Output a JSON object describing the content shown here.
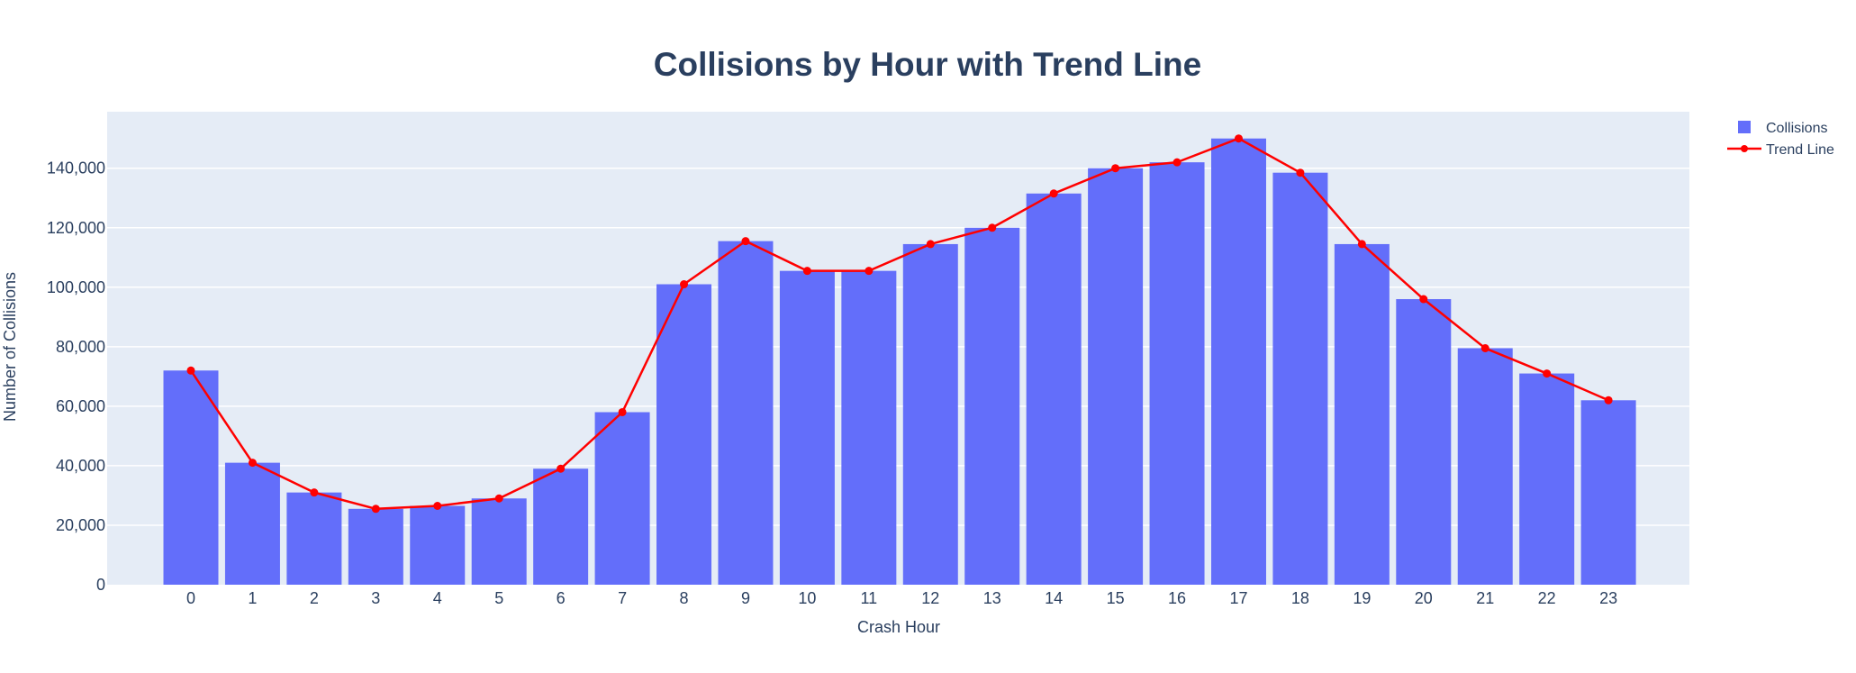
{
  "chart_data": {
    "type": "bar",
    "title": "Collisions by Hour with Trend Line",
    "xlabel": "Crash Hour",
    "ylabel": "Number of Collisions",
    "categories": [
      "0",
      "1",
      "2",
      "3",
      "4",
      "5",
      "6",
      "7",
      "8",
      "9",
      "10",
      "11",
      "12",
      "13",
      "14",
      "15",
      "16",
      "17",
      "18",
      "19",
      "20",
      "21",
      "22",
      "23"
    ],
    "series": [
      {
        "name": "Collisions",
        "type": "bar",
        "color": "#636efa",
        "values": [
          72000,
          41000,
          31000,
          25500,
          26500,
          29000,
          39000,
          58000,
          101000,
          115500,
          105500,
          105500,
          114500,
          120000,
          131500,
          140000,
          142000,
          150000,
          138500,
          114500,
          96000,
          79500,
          71000,
          62000
        ]
      },
      {
        "name": "Trend Line",
        "type": "line+markers",
        "color": "#ff0000",
        "values": [
          72000,
          41000,
          31000,
          25500,
          26500,
          29000,
          39000,
          58000,
          101000,
          115500,
          105500,
          105500,
          114500,
          120000,
          131500,
          140000,
          142000,
          150000,
          138500,
          114500,
          96000,
          79500,
          71000,
          62000
        ]
      }
    ],
    "yticks": [
      0,
      20000,
      40000,
      60000,
      80000,
      100000,
      120000,
      140000
    ],
    "ytick_labels": [
      "0",
      "20,000",
      "40,000",
      "60,000",
      "80,000",
      "100,000",
      "120,000",
      "140,000"
    ],
    "ylim": [
      0,
      159000
    ],
    "grid": true,
    "legend_position": "top-right",
    "plot_background": "#e5ecf6",
    "text_color": "#2a3f5f"
  }
}
